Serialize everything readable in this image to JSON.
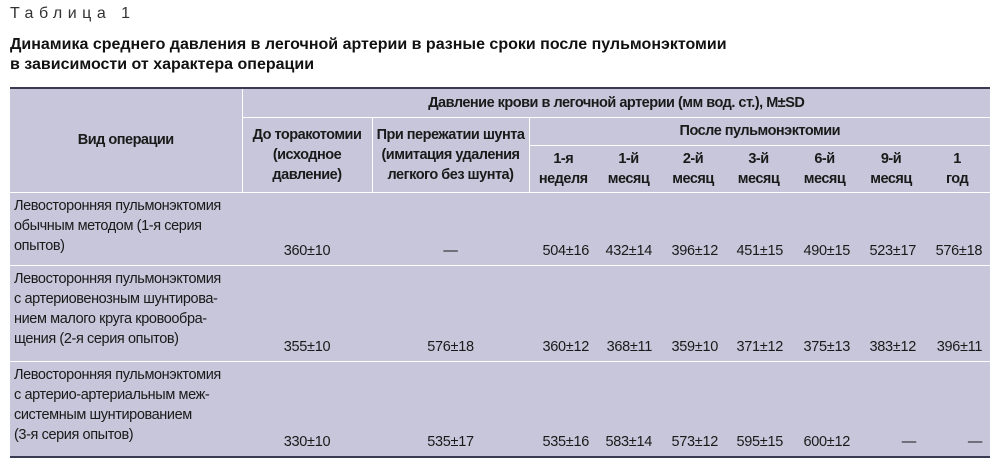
{
  "table_label": "Таблица 1",
  "title_lines": [
    "Динамика среднего давления в легочной артерии в разные сроки после пульмонэктомии",
    "в зависимости от характера операции"
  ],
  "header": {
    "operation_type": "Вид операции",
    "pressure_group": "Давление крови в легочной артерии (мм вод. ст.), M±SD",
    "before_thoracotomy": [
      "До торакотомии",
      "(исходное",
      "давление)"
    ],
    "shunt_clamp": [
      "При пережатии шунта",
      "(имитация удаления",
      "легкого без шунта)"
    ],
    "after_group": "После пульмонэктомии",
    "periods": [
      [
        "1-я",
        "неделя"
      ],
      [
        "1-й",
        "месяц"
      ],
      [
        "2-й",
        "месяц"
      ],
      [
        "3-й",
        "месяц"
      ],
      [
        "6-й",
        "месяц"
      ],
      [
        "9-й",
        "месяц"
      ],
      [
        "1",
        "год"
      ]
    ]
  },
  "rows": [
    {
      "operation": [
        "Левосторонняя пульмонэктомия",
        "обычным методом (1-я серия",
        "опытов)"
      ],
      "before": "360±10",
      "clamp": "—",
      "values": [
        "504±16",
        "432±14",
        "396±12",
        "451±15",
        "490±15",
        "523±17",
        "576±18"
      ]
    },
    {
      "operation": [
        "Левосторонняя пульмонэктомия",
        "с артериовенозным шунтирова-",
        "нием малого круга кровообра-",
        "щения (2-я серия опытов)"
      ],
      "before": "355±10",
      "clamp": "576±18",
      "values": [
        "360±12",
        "368±11",
        "359±10",
        "371±12",
        "375±13",
        "383±12",
        "396±11"
      ]
    },
    {
      "operation": [
        "Левосторонняя пульмонэктомия",
        "с артерио-артериальным меж-",
        "системным шунтированием",
        "(3-я серия опытов)"
      ],
      "before": "330±10",
      "clamp": "535±17",
      "values": [
        "535±16",
        "583±14",
        "573±12",
        "595±15",
        "600±12",
        "—",
        "—"
      ]
    }
  ]
}
